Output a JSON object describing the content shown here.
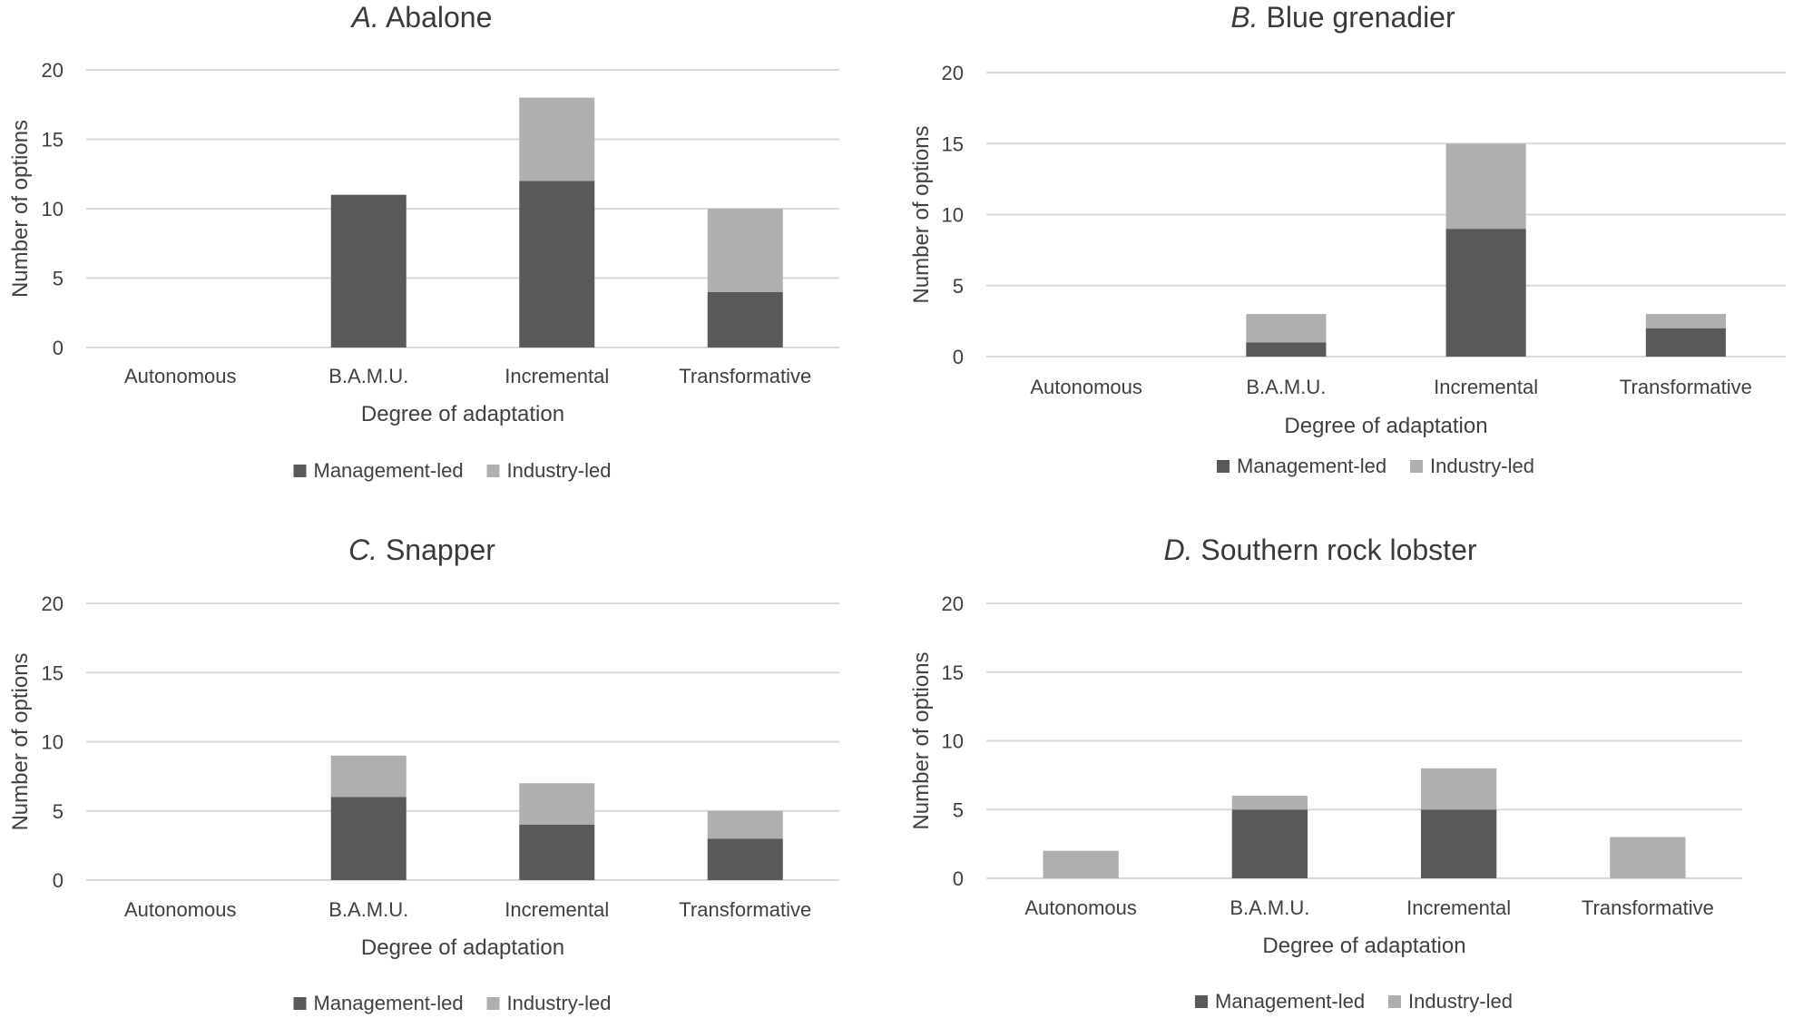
{
  "chart_data": [
    {
      "type": "bar",
      "stacked": true,
      "title_letter": "A.",
      "title_name": "Abalone",
      "xlabel": "Degree of adaptation",
      "ylabel": "Number of options",
      "ylim": [
        0,
        20
      ],
      "yticks": [
        0,
        5,
        10,
        15,
        20
      ],
      "grid": true,
      "legend_position": "bottom",
      "categories": [
        "Autonomous",
        "B.A.M.U.",
        "Incremental",
        "Transformative"
      ],
      "series": [
        {
          "name": "Management-led",
          "values": [
            0,
            11,
            12,
            4
          ]
        },
        {
          "name": "Industry-led",
          "values": [
            0,
            0,
            6,
            6
          ]
        }
      ]
    },
    {
      "type": "bar",
      "stacked": true,
      "title_letter": "B.",
      "title_name": "Blue grenadier",
      "xlabel": "Degree of adaptation",
      "ylabel": "Number of options",
      "ylim": [
        0,
        20
      ],
      "yticks": [
        0,
        5,
        10,
        15,
        20
      ],
      "grid": true,
      "legend_position": "bottom",
      "categories": [
        "Autonomous",
        "B.A.M.U.",
        "Incremental",
        "Transformative"
      ],
      "series": [
        {
          "name": "Management-led",
          "values": [
            0,
            1,
            9,
            2
          ]
        },
        {
          "name": "Industry-led",
          "values": [
            0,
            2,
            6,
            1
          ]
        }
      ]
    },
    {
      "type": "bar",
      "stacked": true,
      "title_letter": "C.",
      "title_name": "Snapper",
      "xlabel": "Degree of adaptation",
      "ylabel": "Number of options",
      "ylim": [
        0,
        20
      ],
      "yticks": [
        0,
        5,
        10,
        15,
        20
      ],
      "grid": true,
      "legend_position": "bottom",
      "categories": [
        "Autonomous",
        "B.A.M.U.",
        "Incremental",
        "Transformative"
      ],
      "series": [
        {
          "name": "Management-led",
          "values": [
            0,
            6,
            4,
            3
          ]
        },
        {
          "name": "Industry-led",
          "values": [
            0,
            3,
            3,
            2
          ]
        }
      ]
    },
    {
      "type": "bar",
      "stacked": true,
      "title_letter": "D.",
      "title_name": "Southern rock lobster",
      "xlabel": "Degree of adaptation",
      "ylabel": "Number of options",
      "ylim": [
        0,
        20
      ],
      "yticks": [
        0,
        5,
        10,
        15,
        20
      ],
      "grid": true,
      "legend_position": "bottom",
      "categories": [
        "Autonomous",
        "B.A.M.U.",
        "Incremental",
        "Transformative"
      ],
      "series": [
        {
          "name": "Management-led",
          "values": [
            0,
            5,
            5,
            0
          ]
        },
        {
          "name": "Industry-led",
          "values": [
            2,
            1,
            3,
            3
          ]
        }
      ]
    }
  ],
  "colors": {
    "management_led": "#595959",
    "industry_led": "#afafaf",
    "gridline": "#d9d9d9",
    "text": "#404040",
    "title": "#3a3a3a"
  }
}
